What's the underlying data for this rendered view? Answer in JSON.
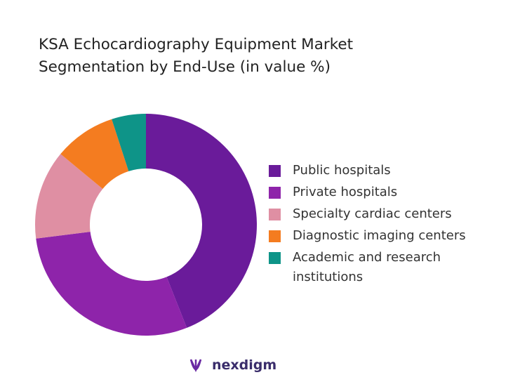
{
  "chart_data": {
    "type": "pie",
    "title": "KSA Echocardiography Equipment Market Segmentation by End-Use (in value %)",
    "categories": [
      "Public hospitals",
      "Private hospitals",
      "Specialty cardiac centers",
      "Diagnostic imaging centers",
      "Academic and research institutions"
    ],
    "values": [
      44,
      29,
      13,
      9,
      5
    ],
    "colors": [
      "#6a1b9a",
      "#8e24aa",
      "#df8fa3",
      "#f47c20",
      "#0e9488"
    ],
    "legend": "right"
  },
  "brand": "nexdigm"
}
